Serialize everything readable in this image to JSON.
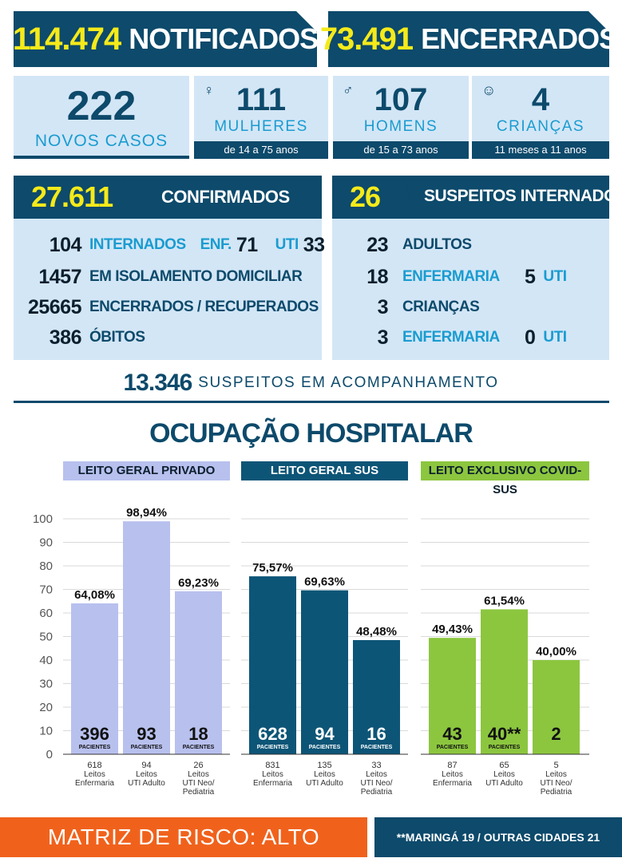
{
  "header": {
    "notificados_num": "114.474",
    "notificados_label": "NOTIFICADOS",
    "encerrados_num": "73.491",
    "encerrados_label": "ENCERRADOS"
  },
  "novos": {
    "num": "222",
    "label": "NOVOS CASOS",
    "mulheres": {
      "num": "111",
      "label": "MULHERES",
      "range": "de 14 a 75 anos",
      "icon": "woman-icon"
    },
    "homens": {
      "num": "107",
      "label": "HOMENS",
      "range": "de 15 a 73 anos",
      "icon": "man-icon"
    },
    "criancas": {
      "num": "4",
      "label": "CRIANÇAS",
      "range": "11 meses a 11 anos",
      "icon": "baby-icon"
    }
  },
  "confirmados": {
    "num": "27.611",
    "label": "CONFIRMADOS",
    "rows": [
      {
        "num": "104",
        "label": "INTERNADOS",
        "enf_label": "ENF.",
        "enf_num": "71",
        "uti_label": "UTI",
        "uti_num": "33"
      },
      {
        "num": "1457",
        "label": "EM ISOLAMENTO DOMICILIAR"
      },
      {
        "num": "25665",
        "label": "ENCERRADOS / RECUPERADOS"
      },
      {
        "num": "386",
        "label": "ÓBITOS"
      }
    ]
  },
  "suspeitos": {
    "num": "26",
    "label": "SUSPEITOS INTERNADOS",
    "rows": [
      {
        "num": "23",
        "label": "ADULTOS"
      },
      {
        "num": "18",
        "label": "ENFERMARIA",
        "uti_num": "5",
        "uti_label": "UTI"
      },
      {
        "num": "3",
        "label": "CRIANÇAS"
      },
      {
        "num": "3",
        "label": "ENFERMARIA",
        "uti_num": "0",
        "uti_label": "UTI"
      }
    ]
  },
  "acompanhamento": {
    "num": "13.346",
    "label": "SUSPEITOS EM ACOMPANHAMENTO"
  },
  "ocupacao_title": "OCUPAÇÃO HOSPITALAR",
  "footer": {
    "matriz": "MATRIZ DE RISCO: ALTO",
    "note": "**MARINGÁ 19 / OUTRAS CIDADES 21"
  },
  "colors": {
    "navy": "#0d4a6b",
    "yellow": "#f5ea1a",
    "light": "#d3e6f6",
    "cyan": "#1a9cd0",
    "privado": "#b8c0ee",
    "sus": "#0d5577",
    "covid": "#8cc63f",
    "orange": "#f0621c"
  },
  "chart_data": {
    "type": "bar",
    "ylim": [
      0,
      100
    ],
    "yticks": [
      0,
      10,
      20,
      30,
      40,
      50,
      60,
      70,
      80,
      90,
      100
    ],
    "groups": [
      {
        "name": "LEITO GERAL PRIVADO",
        "color": "#b8c0ee",
        "bars": [
          {
            "value": 64.08,
            "label": "64,08%",
            "patients": "396",
            "patients_label": "PACIENTES",
            "beds": "618",
            "category": "Leitos Enfermaria"
          },
          {
            "value": 98.94,
            "label": "98,94%",
            "patients": "93",
            "patients_label": "PACIENTES",
            "beds": "94",
            "category": "Leitos UTI Adulto"
          },
          {
            "value": 69.23,
            "label": "69,23%",
            "patients": "18",
            "patients_label": "PACIENTES",
            "beds": "26",
            "category": "Leitos UTI Neo/ Pediatria"
          }
        ]
      },
      {
        "name": "LEITO GERAL SUS",
        "color": "#0d5577",
        "bars": [
          {
            "value": 75.57,
            "label": "75,57%",
            "patients": "628",
            "patients_label": "PACIENTES",
            "beds": "831",
            "category": "Leitos Enfermaria"
          },
          {
            "value": 69.63,
            "label": "69,63%",
            "patients": "94",
            "patients_label": "PACIENTES",
            "beds": "135",
            "category": "Leitos UTI Adulto"
          },
          {
            "value": 48.48,
            "label": "48,48%",
            "patients": "16",
            "patients_label": "PACIENTES",
            "beds": "33",
            "category": "Leitos UTI Neo/ Pediatria"
          }
        ]
      },
      {
        "name": "LEITO EXCLUSIVO COVID-SUS",
        "color": "#8cc63f",
        "bars": [
          {
            "value": 49.43,
            "label": "49,43%",
            "patients": "43",
            "patients_label": "PACIENTES",
            "beds": "87",
            "category": "Leitos Enfermaria"
          },
          {
            "value": 61.54,
            "label": "61,54%",
            "patients": "40**",
            "patients_label": "PACIENTES",
            "beds": "65",
            "category": "Leitos UTI Adulto"
          },
          {
            "value": 40.0,
            "label": "40,00%",
            "patients": "2",
            "patients_label": "",
            "beds": "5",
            "category": "Leitos UTI Neo/ Pediatria"
          }
        ]
      }
    ]
  }
}
